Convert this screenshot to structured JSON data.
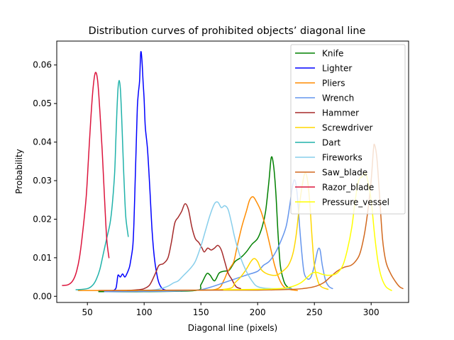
{
  "chart_data": {
    "type": "line",
    "title": "Distribution curves of prohibited objects’ diagonal line",
    "xlabel": "Diagonal line (pixels)",
    "ylabel": "Probability",
    "xlim": [
      23,
      333
    ],
    "ylim": [
      -0.0016,
      0.0662
    ],
    "xticks": [
      50,
      100,
      150,
      200,
      250,
      300
    ],
    "yticks": [
      0.0,
      0.01,
      0.02,
      0.03,
      0.04,
      0.05,
      0.06
    ],
    "ytick_labels": [
      "0.00",
      "0.01",
      "0.02",
      "0.03",
      "0.04",
      "0.05",
      "0.06"
    ],
    "grid": false,
    "legend_position": "upper-right",
    "series": [
      {
        "name": "Knife",
        "color": "#008000",
        "points": [
          [
            60,
            0.0012
          ],
          [
            100,
            0.0012
          ],
          [
            145,
            0.0015
          ],
          [
            150,
            0.003
          ],
          [
            155,
            0.0058
          ],
          [
            158,
            0.0055
          ],
          [
            162,
            0.004
          ],
          [
            166,
            0.006
          ],
          [
            170,
            0.0065
          ],
          [
            175,
            0.0068
          ],
          [
            180,
            0.009
          ],
          [
            185,
            0.01
          ],
          [
            190,
            0.0115
          ],
          [
            195,
            0.0135
          ],
          [
            200,
            0.015
          ],
          [
            204,
            0.018
          ],
          [
            207,
            0.022
          ],
          [
            210,
            0.03
          ],
          [
            212,
            0.036
          ],
          [
            214,
            0.034
          ],
          [
            216,
            0.027
          ],
          [
            218,
            0.016
          ],
          [
            220,
            0.008
          ],
          [
            223,
            0.004
          ],
          [
            226,
            0.0025
          ],
          [
            230,
            0.002
          ]
        ]
      },
      {
        "name": "Lighter",
        "color": "#0000ff",
        "points": [
          [
            72,
            0.0013
          ],
          [
            75,
            0.002
          ],
          [
            76,
            0.0035
          ],
          [
            77,
            0.0055
          ],
          [
            79,
            0.005
          ],
          [
            81,
            0.0058
          ],
          [
            83,
            0.005
          ],
          [
            85,
            0.006
          ],
          [
            87,
            0.0075
          ],
          [
            88,
            0.009
          ],
          [
            90,
            0.013
          ],
          [
            91,
            0.019
          ],
          [
            92,
            0.029
          ],
          [
            93,
            0.039
          ],
          [
            94,
            0.049
          ],
          [
            95,
            0.053
          ],
          [
            96,
            0.056
          ],
          [
            97,
            0.0632
          ],
          [
            98,
            0.0615
          ],
          [
            99,
            0.056
          ],
          [
            100,
            0.051
          ],
          [
            101,
            0.044
          ],
          [
            103,
            0.038
          ],
          [
            105,
            0.028
          ],
          [
            107,
            0.017
          ],
          [
            109,
            0.01
          ],
          [
            111,
            0.006
          ],
          [
            113,
            0.0035
          ],
          [
            116,
            0.002
          ],
          [
            120,
            0.0015
          ]
        ]
      },
      {
        "name": "Pliers",
        "color": "#ff8c00",
        "points": [
          [
            42,
            0.0015
          ],
          [
            100,
            0.0015
          ],
          [
            150,
            0.0016
          ],
          [
            165,
            0.002
          ],
          [
            170,
            0.004
          ],
          [
            173,
            0.006
          ],
          [
            176,
            0.0075
          ],
          [
            179,
            0.009
          ],
          [
            182,
            0.013
          ],
          [
            186,
            0.018
          ],
          [
            190,
            0.022
          ],
          [
            193,
            0.025
          ],
          [
            196,
            0.0258
          ],
          [
            199,
            0.0245
          ],
          [
            203,
            0.022
          ],
          [
            207,
            0.018
          ],
          [
            211,
            0.013
          ],
          [
            215,
            0.008
          ],
          [
            219,
            0.0045
          ],
          [
            223,
            0.0025
          ],
          [
            228,
            0.0018
          ],
          [
            235,
            0.0015
          ]
        ]
      },
      {
        "name": "Wrench",
        "color": "#6495ed",
        "points": [
          [
            65,
            0.0012
          ],
          [
            120,
            0.0013
          ],
          [
            140,
            0.0015
          ],
          [
            150,
            0.0017
          ],
          [
            160,
            0.0025
          ],
          [
            170,
            0.0035
          ],
          [
            180,
            0.0045
          ],
          [
            190,
            0.0055
          ],
          [
            200,
            0.0065
          ],
          [
            205,
            0.008
          ],
          [
            210,
            0.009
          ],
          [
            215,
            0.011
          ],
          [
            220,
            0.014
          ],
          [
            225,
            0.018
          ],
          [
            228,
            0.023
          ],
          [
            231,
            0.029
          ],
          [
            233,
            0.03
          ],
          [
            235,
            0.026
          ],
          [
            237,
            0.018
          ],
          [
            239,
            0.011
          ],
          [
            241,
            0.006
          ],
          [
            244,
            0.0045
          ],
          [
            247,
            0.005
          ],
          [
            250,
            0.008
          ],
          [
            253,
            0.012
          ],
          [
            255,
            0.012
          ],
          [
            257,
            0.008
          ],
          [
            260,
            0.004
          ],
          [
            263,
            0.0025
          ],
          [
            266,
            0.002
          ]
        ]
      },
      {
        "name": "Hammer",
        "color": "#a52a2a",
        "points": [
          [
            85,
            0.0015
          ],
          [
            95,
            0.0017
          ],
          [
            100,
            0.002
          ],
          [
            105,
            0.003
          ],
          [
            110,
            0.006
          ],
          [
            113,
            0.008
          ],
          [
            117,
            0.0085
          ],
          [
            121,
            0.01
          ],
          [
            124,
            0.014
          ],
          [
            127,
            0.019
          ],
          [
            130,
            0.0205
          ],
          [
            133,
            0.022
          ],
          [
            136,
            0.024
          ],
          [
            139,
            0.0225
          ],
          [
            142,
            0.018
          ],
          [
            145,
            0.015
          ],
          [
            148,
            0.014
          ],
          [
            151,
            0.0125
          ],
          [
            153,
            0.0115
          ],
          [
            156,
            0.0125
          ],
          [
            159,
            0.012
          ],
          [
            162,
            0.0125
          ],
          [
            165,
            0.0132
          ],
          [
            168,
            0.012
          ],
          [
            171,
            0.009
          ],
          [
            174,
            0.006
          ],
          [
            177,
            0.0045
          ],
          [
            181,
            0.0025
          ],
          [
            185,
            0.002
          ]
        ]
      },
      {
        "name": "Screwdriver",
        "color": "#ffd700",
        "points": [
          [
            80,
            0.0015
          ],
          [
            150,
            0.0016
          ],
          [
            175,
            0.002
          ],
          [
            180,
            0.0035
          ],
          [
            185,
            0.005
          ],
          [
            190,
            0.007
          ],
          [
            194,
            0.009
          ],
          [
            197,
            0.0098
          ],
          [
            200,
            0.009
          ],
          [
            203,
            0.007
          ],
          [
            207,
            0.006
          ],
          [
            212,
            0.0055
          ],
          [
            217,
            0.0055
          ],
          [
            222,
            0.0065
          ],
          [
            227,
            0.008
          ],
          [
            231,
            0.011
          ],
          [
            234,
            0.016
          ],
          [
            237,
            0.024
          ],
          [
            240,
            0.03
          ],
          [
            242,
            0.032
          ],
          [
            244,
            0.03
          ],
          [
            246,
            0.024
          ],
          [
            248,
            0.015
          ],
          [
            250,
            0.008
          ],
          [
            253,
            0.004
          ],
          [
            256,
            0.0025
          ],
          [
            262,
            0.0018
          ]
        ]
      },
      {
        "name": "Dart",
        "color": "#20b2aa",
        "points": [
          [
            40,
            0.0017
          ],
          [
            50,
            0.002
          ],
          [
            55,
            0.003
          ],
          [
            58,
            0.0045
          ],
          [
            61,
            0.007
          ],
          [
            64,
            0.011
          ],
          [
            67,
            0.015
          ],
          [
            70,
            0.019
          ],
          [
            72,
            0.024
          ],
          [
            74,
            0.032
          ],
          [
            75,
            0.04
          ],
          [
            76,
            0.048
          ],
          [
            77,
            0.054
          ],
          [
            78,
            0.056
          ],
          [
            79,
            0.054
          ],
          [
            80,
            0.048
          ],
          [
            81,
            0.04
          ],
          [
            82,
            0.032
          ],
          [
            83,
            0.025
          ],
          [
            84,
            0.02
          ],
          [
            86,
            0.0155
          ]
        ]
      },
      {
        "name": "Fireworks",
        "color": "#87ceeb",
        "points": [
          [
            95,
            0.0015
          ],
          [
            110,
            0.0017
          ],
          [
            120,
            0.0025
          ],
          [
            126,
            0.0035
          ],
          [
            130,
            0.004
          ],
          [
            135,
            0.0055
          ],
          [
            140,
            0.007
          ],
          [
            145,
            0.009
          ],
          [
            150,
            0.013
          ],
          [
            154,
            0.017
          ],
          [
            158,
            0.021
          ],
          [
            162,
            0.024
          ],
          [
            165,
            0.0244
          ],
          [
            168,
            0.023
          ],
          [
            171,
            0.0235
          ],
          [
            174,
            0.0225
          ],
          [
            177,
            0.019
          ],
          [
            180,
            0.015
          ],
          [
            185,
            0.01
          ],
          [
            190,
            0.0065
          ],
          [
            195,
            0.004
          ],
          [
            200,
            0.0025
          ],
          [
            210,
            0.002
          ],
          [
            230,
            0.002
          ]
        ]
      },
      {
        "name": "Saw_blade",
        "color": "#d2691e",
        "points": [
          [
            60,
            0.0015
          ],
          [
            150,
            0.0016
          ],
          [
            200,
            0.0016
          ],
          [
            230,
            0.0018
          ],
          [
            240,
            0.002
          ],
          [
            250,
            0.0025
          ],
          [
            258,
            0.0035
          ],
          [
            264,
            0.005
          ],
          [
            270,
            0.0065
          ],
          [
            276,
            0.0075
          ],
          [
            282,
            0.008
          ],
          [
            286,
            0.009
          ],
          [
            290,
            0.011
          ],
          [
            294,
            0.016
          ],
          [
            297,
            0.022
          ],
          [
            300,
            0.03
          ],
          [
            302,
            0.038
          ],
          [
            303,
            0.0393
          ],
          [
            305,
            0.036
          ],
          [
            307,
            0.028
          ],
          [
            310,
            0.015
          ],
          [
            313,
            0.009
          ],
          [
            317,
            0.006
          ],
          [
            321,
            0.004
          ],
          [
            325,
            0.0025
          ],
          [
            328,
            0.002
          ]
        ]
      },
      {
        "name": "Razor_blade",
        "color": "#dc143c",
        "points": [
          [
            28,
            0.0028
          ],
          [
            33,
            0.003
          ],
          [
            37,
            0.004
          ],
          [
            40,
            0.006
          ],
          [
            43,
            0.01
          ],
          [
            46,
            0.017
          ],
          [
            49,
            0.026
          ],
          [
            51,
            0.036
          ],
          [
            53,
            0.046
          ],
          [
            55,
            0.054
          ],
          [
            57,
            0.058
          ],
          [
            59,
            0.056
          ],
          [
            61,
            0.048
          ],
          [
            63,
            0.038
          ],
          [
            65,
            0.026
          ],
          [
            67,
            0.015
          ],
          [
            69,
            0.01
          ]
        ]
      },
      {
        "name": "Pressure_vessel",
        "color": "#ffff00",
        "points": [
          [
            170,
            0.0017
          ],
          [
            200,
            0.0018
          ],
          [
            220,
            0.002
          ],
          [
            230,
            0.0025
          ],
          [
            238,
            0.0035
          ],
          [
            244,
            0.005
          ],
          [
            248,
            0.006
          ],
          [
            252,
            0.0062
          ],
          [
            256,
            0.0058
          ],
          [
            260,
            0.0055
          ],
          [
            265,
            0.0055
          ],
          [
            270,
            0.006
          ],
          [
            275,
            0.008
          ],
          [
            279,
            0.012
          ],
          [
            283,
            0.018
          ],
          [
            286,
            0.025
          ],
          [
            289,
            0.03
          ],
          [
            292,
            0.031
          ],
          [
            295,
            0.032
          ],
          [
            297,
            0.03
          ],
          [
            300,
            0.025
          ],
          [
            303,
            0.016
          ],
          [
            306,
            0.009
          ],
          [
            309,
            0.005
          ],
          [
            313,
            0.0025
          ],
          [
            318,
            0.0015
          ]
        ]
      }
    ]
  }
}
